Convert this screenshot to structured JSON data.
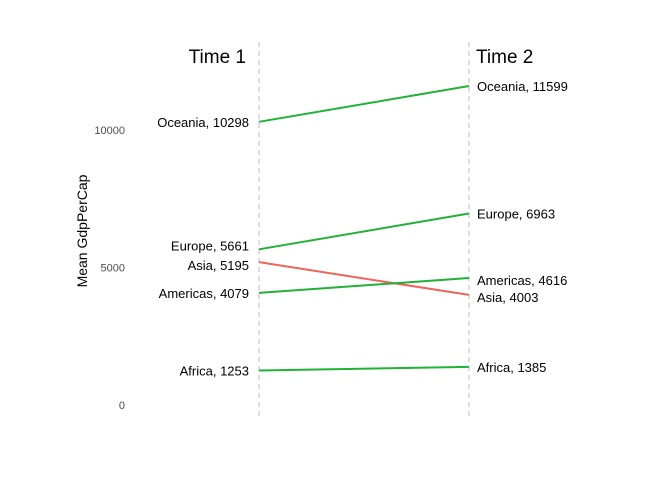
{
  "chart_data": {
    "type": "line",
    "subtype": "slopegraph",
    "ylabel": "Mean GdpPerCap",
    "ylim": [
      0,
      12000
    ],
    "yticks": [
      0,
      5000,
      10000
    ],
    "grid": false,
    "columns": [
      "Time 1",
      "Time 2"
    ],
    "colors": {
      "increase": "#1fb234",
      "decrease": "#ef645b",
      "guide": "#bdbdbd"
    },
    "series": [
      {
        "name": "Oceania",
        "time1": 10298,
        "time2": 11599,
        "label1": "Oceania, 10298",
        "label2": "Oceania, 11599"
      },
      {
        "name": "Europe",
        "time1": 5661,
        "time2": 6963,
        "label1": "Europe, 5661",
        "label2": "Europe, 6963"
      },
      {
        "name": "Asia",
        "time1": 5195,
        "time2": 4003,
        "label1": "Asia, 5195",
        "label2": "Asia, 4003"
      },
      {
        "name": "Americas",
        "time1": 4079,
        "time2": 4616,
        "label1": "Americas, 4079",
        "label2": "Americas, 4616"
      },
      {
        "name": "Africa",
        "time1": 1253,
        "time2": 1385,
        "label1": "Africa, 1253",
        "label2": "Africa, 1385"
      }
    ]
  }
}
